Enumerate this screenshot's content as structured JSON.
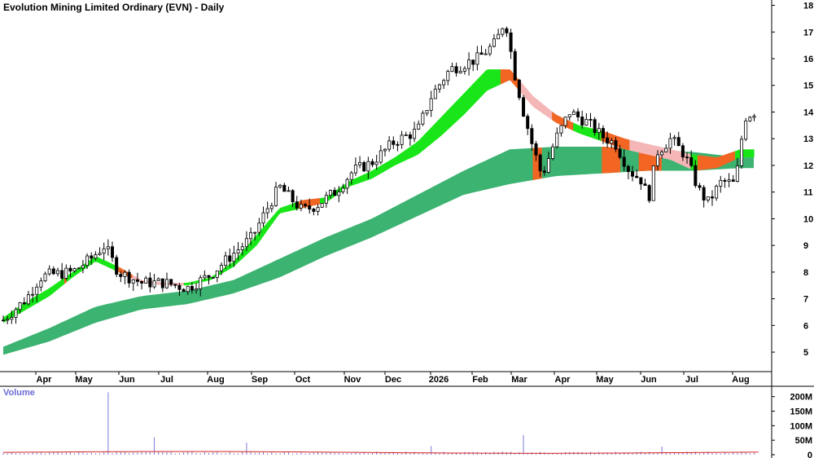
{
  "chart_data": {
    "type": "candlestick",
    "title": "Evolution Mining Limited Ordinary (EVN) - Daily",
    "price_axis": {
      "ticks": [
        "18",
        "17",
        "16",
        "15",
        "14",
        "13",
        "12",
        "11",
        "10",
        "9",
        "8",
        "7",
        "6",
        "5"
      ],
      "ylim": [
        4.3,
        18.2
      ]
    },
    "month_labels": [
      "Apr",
      "May",
      "Jun",
      "Jul",
      "Aug",
      "Sep",
      "Oct",
      "Nov",
      "Dec",
      "2026",
      "Feb",
      "Mar",
      "Apr",
      "May",
      "Jun",
      "Jul",
      "Aug"
    ],
    "volume": {
      "label": "Volume",
      "ticks": [
        "200M",
        "150M",
        "100M",
        "50M",
        "0"
      ],
      "ylim": [
        0,
        230
      ],
      "spikes": [
        {
          "month_index": 2,
          "value": 215
        },
        {
          "month_index": 3,
          "value": 60
        },
        {
          "month_index": 5,
          "value": 42
        },
        {
          "month_index": 9,
          "value": 30
        },
        {
          "month_index": 11,
          "value": 68
        },
        {
          "month_index": 14,
          "value": 28
        }
      ]
    },
    "fast_band_upper": [
      [
        0,
        6.3
      ],
      [
        0.5,
        6.9
      ],
      [
        1,
        7.4
      ],
      [
        1.5,
        8.0
      ],
      [
        2,
        8.6
      ],
      [
        2.5,
        8.2
      ],
      [
        3,
        7.7
      ],
      [
        3.5,
        7.6
      ],
      [
        4,
        7.6
      ],
      [
        4.5,
        7.8
      ],
      [
        5,
        8.4
      ],
      [
        5.5,
        9.4
      ],
      [
        6,
        10.4
      ],
      [
        6.5,
        10.7
      ],
      [
        7,
        10.8
      ],
      [
        7.5,
        11.4
      ],
      [
        8,
        11.8
      ],
      [
        8.5,
        12.3
      ],
      [
        9,
        12.9
      ],
      [
        9.5,
        13.8
      ],
      [
        10,
        14.7
      ],
      [
        10.5,
        15.6
      ],
      [
        11,
        15.6
      ],
      [
        11.5,
        14.6
      ],
      [
        12,
        13.9
      ],
      [
        12.5,
        13.5
      ],
      [
        13,
        13.3
      ],
      [
        13.5,
        13.0
      ],
      [
        14,
        12.8
      ],
      [
        14.5,
        12.6
      ],
      [
        15,
        12.4
      ],
      [
        15.5,
        12.3
      ],
      [
        16,
        12.6
      ]
    ],
    "fast_band_lower": [
      [
        0,
        6.1
      ],
      [
        0.5,
        6.6
      ],
      [
        1,
        7.1
      ],
      [
        1.5,
        7.8
      ],
      [
        2,
        8.4
      ],
      [
        2.5,
        8.0
      ],
      [
        3,
        7.6
      ],
      [
        3.5,
        7.5
      ],
      [
        4,
        7.5
      ],
      [
        4.5,
        7.7
      ],
      [
        5,
        8.2
      ],
      [
        5.5,
        9.0
      ],
      [
        6,
        10.2
      ],
      [
        6.5,
        10.4
      ],
      [
        7,
        10.6
      ],
      [
        7.5,
        11.2
      ],
      [
        8,
        11.5
      ],
      [
        8.5,
        12.0
      ],
      [
        9,
        12.4
      ],
      [
        9.5,
        13.1
      ],
      [
        10,
        13.9
      ],
      [
        10.5,
        14.8
      ],
      [
        11,
        15.2
      ],
      [
        11.5,
        14.2
      ],
      [
        12,
        13.6
      ],
      [
        12.5,
        13.2
      ],
      [
        13,
        12.9
      ],
      [
        13.5,
        12.6
      ],
      [
        14,
        12.4
      ],
      [
        14.5,
        12.2
      ],
      [
        15,
        11.8
      ],
      [
        15.5,
        11.9
      ],
      [
        16,
        12.3
      ]
    ],
    "slow_band_upper": [
      [
        0,
        5.2
      ],
      [
        1,
        5.9
      ],
      [
        2,
        6.7
      ],
      [
        3,
        7.1
      ],
      [
        4,
        7.3
      ],
      [
        5,
        7.7
      ],
      [
        6,
        8.5
      ],
      [
        7,
        9.3
      ],
      [
        8,
        10.0
      ],
      [
        9,
        10.9
      ],
      [
        10,
        11.8
      ],
      [
        11,
        12.6
      ],
      [
        12,
        12.7
      ],
      [
        13,
        12.7
      ],
      [
        14,
        12.6
      ],
      [
        15,
        12.5
      ],
      [
        16,
        12.3
      ]
    ],
    "slow_band_lower": [
      [
        0,
        4.9
      ],
      [
        1,
        5.4
      ],
      [
        2,
        6.1
      ],
      [
        3,
        6.6
      ],
      [
        4,
        6.8
      ],
      [
        5,
        7.2
      ],
      [
        6,
        7.8
      ],
      [
        7,
        8.6
      ],
      [
        8,
        9.3
      ],
      [
        9,
        10.1
      ],
      [
        10,
        10.9
      ],
      [
        11,
        11.3
      ],
      [
        12,
        11.6
      ],
      [
        13,
        11.7
      ],
      [
        14,
        11.8
      ],
      [
        15,
        11.8
      ],
      [
        16,
        11.9
      ]
    ],
    "orange_zones": [
      [
        1.3,
        1.4
      ],
      [
        2.5,
        3.0
      ],
      [
        6.4,
        6.9
      ],
      [
        10.8,
        11.3
      ],
      [
        11.9,
        12.4
      ],
      [
        13.0,
        14.0
      ],
      [
        15.1,
        15.9
      ]
    ],
    "pink_zones": [
      [
        2.8,
        3.9
      ],
      [
        11.2,
        11.9
      ],
      [
        13.6,
        14.9
      ]
    ],
    "fill_zones": [
      [
        11.5,
        11.7
      ],
      [
        13.0,
        13.4
      ],
      [
        13.8,
        14.3
      ]
    ],
    "candle_anchors": [
      [
        0,
        6.2
      ],
      [
        0.5,
        7.0
      ],
      [
        0.8,
        7.8
      ],
      [
        1,
        7.9
      ],
      [
        1.5,
        8.0
      ],
      [
        1.9,
        8.5
      ],
      [
        2.2,
        9.0
      ],
      [
        2.5,
        8.0
      ],
      [
        3,
        7.6
      ],
      [
        3.5,
        7.6
      ],
      [
        4,
        7.4
      ],
      [
        4.5,
        7.9
      ],
      [
        5,
        8.7
      ],
      [
        5.4,
        9.3
      ],
      [
        5.8,
        10.6
      ],
      [
        6,
        11.2
      ],
      [
        6.5,
        10.3
      ],
      [
        6.8,
        10.5
      ],
      [
        7.2,
        11.0
      ],
      [
        7.6,
        11.8
      ],
      [
        8,
        12.1
      ],
      [
        8.5,
        12.9
      ],
      [
        9,
        13.3
      ],
      [
        9.3,
        14.6
      ],
      [
        9.7,
        15.6
      ],
      [
        10.3,
        16.0
      ],
      [
        10.7,
        16.6
      ],
      [
        10.9,
        17.5
      ],
      [
        11.1,
        15.5
      ],
      [
        11.3,
        14.0
      ],
      [
        11.5,
        12.7
      ],
      [
        11.7,
        11.6
      ],
      [
        12,
        13.0
      ],
      [
        12.3,
        14.0
      ],
      [
        12.7,
        13.6
      ],
      [
        13,
        13.1
      ],
      [
        13.3,
        12.8
      ],
      [
        13.6,
        11.8
      ],
      [
        13.9,
        11.4
      ],
      [
        14,
        10.6
      ],
      [
        14.2,
        12.5
      ],
      [
        14.5,
        13.0
      ],
      [
        14.8,
        12.4
      ],
      [
        15.1,
        11.1
      ],
      [
        15.3,
        10.6
      ],
      [
        15.6,
        11.4
      ],
      [
        15.9,
        11.3
      ],
      [
        16.1,
        13.8
      ],
      [
        16.3,
        14.0
      ]
    ]
  }
}
